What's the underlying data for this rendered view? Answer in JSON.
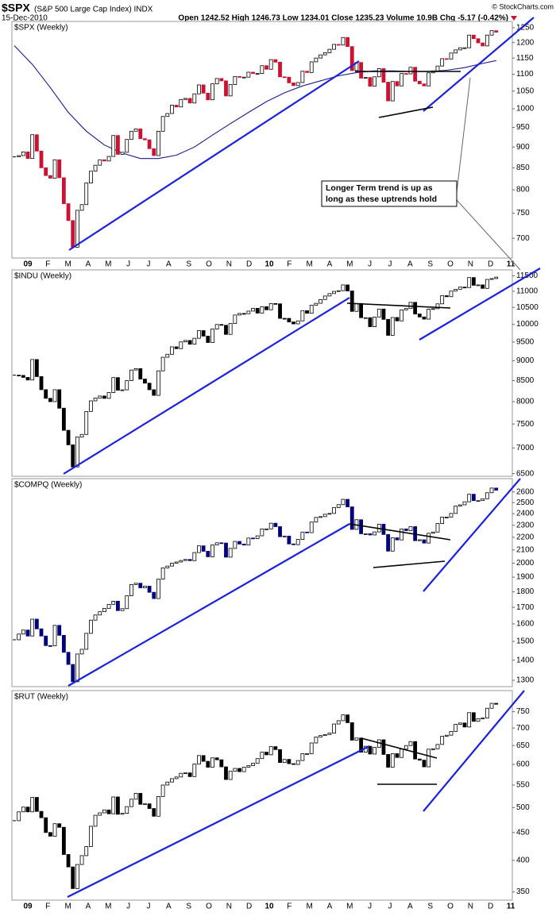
{
  "header": {
    "symbol": "$SPX",
    "name": "(S&P 500 Large Cap Index) INDX",
    "date": "15-Dec-2010",
    "quote": "Open 1242.52  High 1246.73  Low 1234.01  Close 1235.23  Volume 10.9B  Chg -5.17 (-0.42%)",
    "copyright": "© StockCharts.com"
  },
  "chart_data": [
    {
      "type": "candlestick",
      "title": "$SPX (Weekly)",
      "log_scale": true,
      "up_color": "#ffffff",
      "down_color": "#cc1133",
      "x_labels": [
        "09",
        "F",
        "M",
        "A",
        "M",
        "J",
        "J",
        "A",
        "S",
        "O",
        "N",
        "D",
        "10",
        "F",
        "M",
        "A",
        "M",
        "J",
        "J",
        "A",
        "S",
        "O",
        "N",
        "D",
        "11"
      ],
      "ylim": [
        663,
        1272
      ],
      "yticks": [
        700,
        750,
        800,
        850,
        900,
        950,
        1000,
        1050,
        1100,
        1150,
        1200,
        1250
      ],
      "values": [
        876,
        879,
        888,
        872,
        931,
        890,
        850,
        832,
        826,
        869,
        827,
        770,
        735,
        683,
        756,
        768,
        815,
        842,
        856,
        869,
        866,
        877,
        929,
        882,
        887,
        919,
        940,
        946,
        921,
        918,
        896,
        879,
        940,
        979,
        987,
        1010,
        1005,
        1026,
        1029,
        1016,
        1042,
        1068,
        1044,
        1025,
        1071,
        1087,
        1080,
        1036,
        1069,
        1093,
        1091,
        1091,
        1106,
        1102,
        1102,
        1126,
        1115,
        1145,
        1137,
        1092,
        1091,
        1074,
        1066,
        1075,
        1109,
        1105,
        1138,
        1150,
        1160,
        1167,
        1178,
        1194,
        1192,
        1217,
        1187,
        1111,
        1136,
        1088,
        1090,
        1064,
        1092,
        1117,
        1076,
        1022,
        1078,
        1065,
        1102,
        1101,
        1121,
        1079,
        1071,
        1065,
        1104,
        1110,
        1125,
        1148,
        1147,
        1166,
        1176,
        1183,
        1183,
        1225,
        1213,
        1199,
        1189,
        1225,
        1240,
        1235
      ],
      "ma": {
        "color": "#1a1a8c",
        "x": [
          0,
          4,
          8,
          12,
          16,
          20,
          24,
          28,
          32,
          36,
          40,
          44,
          48,
          52,
          56,
          60,
          64,
          68,
          72,
          76,
          80,
          84,
          88,
          92,
          96,
          100,
          104,
          107
        ],
        "values": [
          1190,
          1130,
          1060,
          990,
          940,
          905,
          885,
          872,
          872,
          880,
          900,
          930,
          960,
          990,
          1020,
          1045,
          1065,
          1080,
          1095,
          1105,
          1110,
          1110,
          1108,
          1108,
          1112,
          1120,
          1133,
          1142
        ]
      },
      "annotation": [
        "Longer Term trend is up as",
        "long as these uptrends hold"
      ]
    },
    {
      "type": "candlestick",
      "title": "$INDU (Weekly)",
      "log_scale": true,
      "up_color": "#ffffff",
      "down_color": "#000000",
      "ylim": [
        6450,
        11700
      ],
      "yticks": [
        6500,
        7000,
        7500,
        8000,
        8500,
        9000,
        9500,
        10000,
        10500,
        11000,
        11500
      ],
      "values": [
        8635,
        8629,
        8579,
        8515,
        9034,
        8599,
        8281,
        8077,
        8000,
        8280,
        7850,
        7365,
        7063,
        6627,
        7224,
        7278,
        7776,
        8018,
        8083,
        8131,
        8076,
        8212,
        8575,
        8268,
        8277,
        8500,
        8764,
        8799,
        8539,
        8438,
        8280,
        8146,
        8743,
        9093,
        9172,
        9370,
        9321,
        9505,
        9544,
        9441,
        9605,
        9820,
        9665,
        9488,
        9865,
        9995,
        9972,
        9713,
        10023,
        10271,
        10318,
        10310,
        10388,
        10471,
        10329,
        10520,
        10428,
        10618,
        10609,
        10173,
        10172,
        10067,
        10012,
        10099,
        10402,
        10325,
        10567,
        10625,
        10742,
        10851,
        10927,
        10997,
        11018,
        11204,
        11009,
        10380,
        10620,
        10193,
        10193,
        9931,
        10212,
        10450,
        10144,
        9686,
        10198,
        10098,
        10424,
        10466,
        10654,
        10303,
        10214,
        10150,
        10448,
        10462,
        10608,
        10860,
        10829,
        11006,
        11063,
        11133,
        11118,
        11444,
        11193,
        11204,
        11092,
        11382,
        11410,
        11457
      ]
    },
    {
      "type": "candlestick",
      "title": "$COMPQ (Weekly)",
      "log_scale": true,
      "up_color": "#ffffff",
      "down_color": "#00007a",
      "ylim": [
        1270,
        2730
      ],
      "yticks": [
        1300,
        1400,
        1500,
        1600,
        1700,
        1800,
        1900,
        2000,
        2100,
        2200,
        2300,
        2400,
        2500,
        2600
      ],
      "values": [
        1509,
        1541,
        1564,
        1530,
        1628,
        1571,
        1530,
        1477,
        1476,
        1591,
        1534,
        1441,
        1378,
        1293,
        1432,
        1457,
        1545,
        1622,
        1653,
        1673,
        1694,
        1719,
        1739,
        1680,
        1692,
        1774,
        1849,
        1858,
        1827,
        1838,
        1797,
        1756,
        1886,
        1966,
        1979,
        2000,
        2009,
        2020,
        2028,
        2019,
        2080,
        2132,
        2090,
        2048,
        2139,
        2156,
        2154,
        2045,
        2112,
        2167,
        2146,
        2138,
        2194,
        2190,
        2212,
        2269,
        2269,
        2317,
        2288,
        2205,
        2210,
        2147,
        2141,
        2183,
        2243,
        2238,
        2327,
        2367,
        2374,
        2395,
        2402,
        2454,
        2481,
        2530,
        2461,
        2265,
        2347,
        2229,
        2229,
        2219,
        2244,
        2309,
        2223,
        2091,
        2196,
        2179,
        2269,
        2255,
        2288,
        2173,
        2180,
        2154,
        2233,
        2243,
        2315,
        2370,
        2370,
        2402,
        2468,
        2479,
        2507,
        2578,
        2518,
        2518,
        2535,
        2592,
        2637,
        2617
      ]
    },
    {
      "type": "candlestick",
      "title": "$RUT (Weekly)",
      "log_scale": true,
      "up_color": "#ffffff",
      "down_color": "#000000",
      "x_labels": [
        "09",
        "F",
        "M",
        "A",
        "M",
        "J",
        "J",
        "A",
        "S",
        "O",
        "N",
        "D",
        "10",
        "F",
        "M",
        "A",
        "M",
        "J",
        "J",
        "A",
        "S",
        "O",
        "N",
        "D",
        "11"
      ],
      "ylim": [
        338,
        820
      ],
      "yticks": [
        350,
        400,
        450,
        500,
        550,
        600,
        650,
        700,
        750
      ],
      "values": [
        473,
        491,
        501,
        491,
        522,
        492,
        479,
        450,
        443,
        467,
        460,
        410,
        389,
        355,
        393,
        408,
        424,
        462,
        484,
        489,
        495,
        487,
        523,
        486,
        488,
        502,
        518,
        531,
        507,
        508,
        498,
        482,
        524,
        550,
        557,
        565,
        569,
        578,
        579,
        570,
        601,
        623,
        608,
        593,
        617,
        612,
        594,
        563,
        583,
        590,
        582,
        593,
        597,
        603,
        615,
        632,
        625,
        647,
        639,
        605,
        613,
        602,
        600,
        610,
        628,
        628,
        657,
        674,
        678,
        681,
        685,
        712,
        722,
        740,
        716,
        665,
        671,
        632,
        648,
        627,
        645,
        666,
        626,
        593,
        628,
        618,
        640,
        650,
        661,
        614,
        611,
        594,
        640,
        641,
        653,
        676,
        679,
        690,
        711,
        715,
        703,
        747,
        720,
        728,
        730,
        761,
        777,
        774
      ]
    }
  ]
}
